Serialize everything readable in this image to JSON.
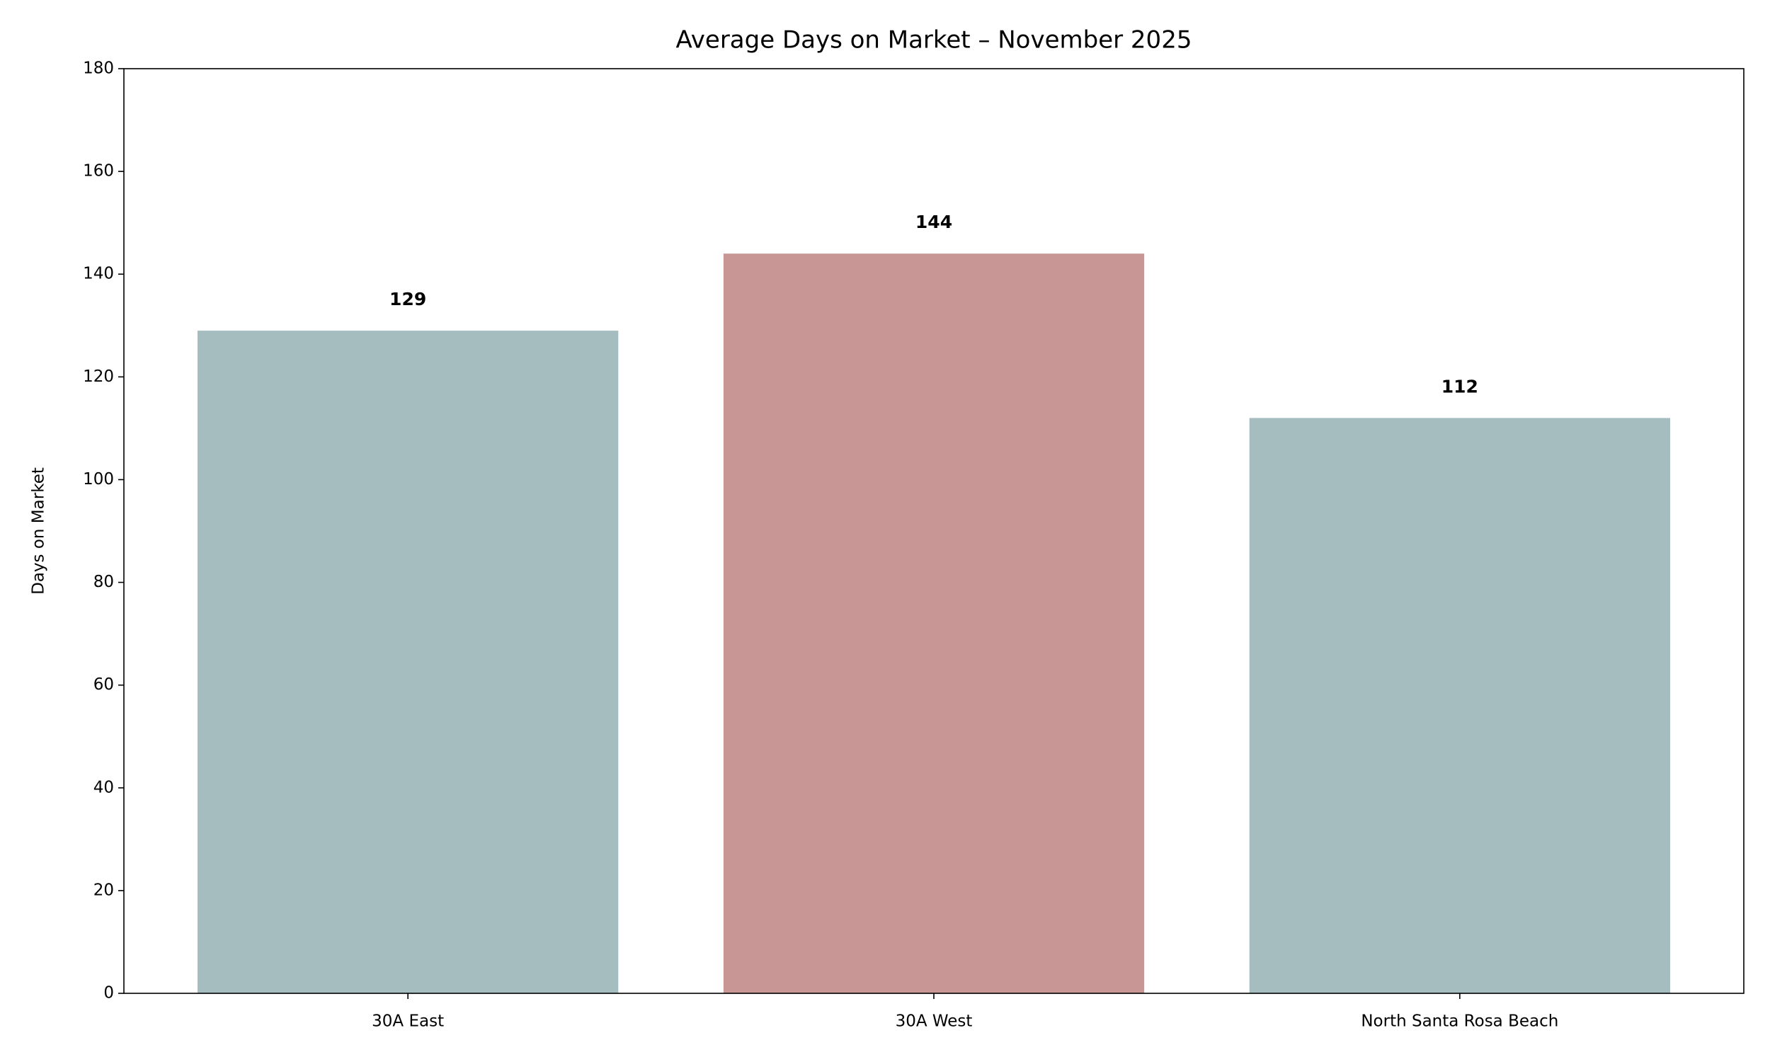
{
  "chart_data": {
    "type": "bar",
    "title": "Average Days on Market – November 2025",
    "ylabel": "Days on Market",
    "categories": [
      "30A East",
      "30A West",
      "North Santa Rosa Beach"
    ],
    "values": [
      129,
      144,
      112
    ],
    "colors": [
      "#a5bdbf",
      "#c99696",
      "#a5bdbf"
    ],
    "ylim": [
      0,
      180
    ],
    "yticks": [
      0,
      20,
      40,
      60,
      80,
      100,
      120,
      140,
      160,
      180
    ]
  }
}
